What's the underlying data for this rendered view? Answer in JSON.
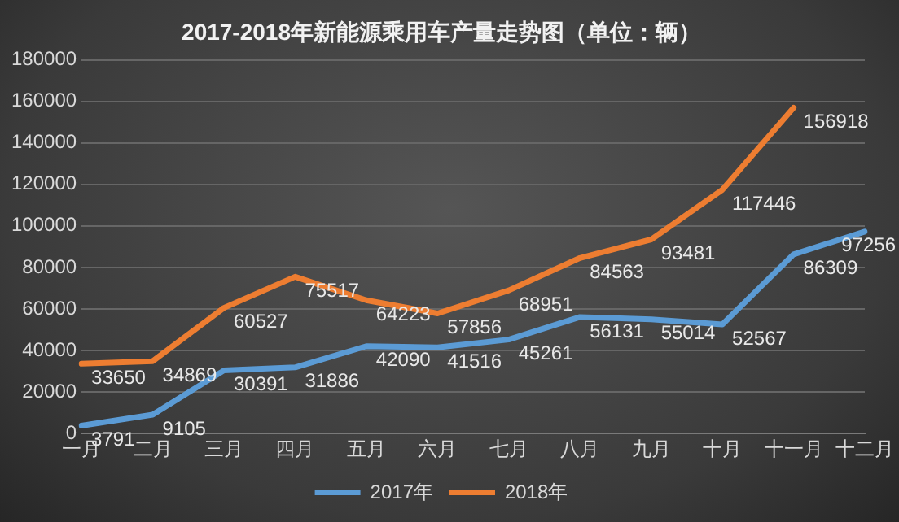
{
  "chart_data": {
    "type": "line",
    "title": "2017-2018年新能源乘用车产量走势图（单位：辆）",
    "categories": [
      "一月",
      "二月",
      "三月",
      "四月",
      "五月",
      "六月",
      "七月",
      "八月",
      "九月",
      "十月",
      "十一月",
      "十二月"
    ],
    "series": [
      {
        "name": "2017年",
        "color": "#5b9bd5",
        "values": [
          3791,
          9105,
          30391,
          31886,
          42090,
          41516,
          45261,
          56131,
          55014,
          52567,
          86309,
          97256
        ]
      },
      {
        "name": "2018年",
        "color": "#ed7d31",
        "values": [
          33650,
          34869,
          60527,
          75517,
          64223,
          57856,
          68951,
          84563,
          93481,
          117446,
          156918,
          null
        ]
      }
    ],
    "ylim": [
      0,
      180000
    ],
    "yticks": [
      0,
      20000,
      40000,
      60000,
      80000,
      100000,
      120000,
      140000,
      160000,
      180000
    ],
    "grid": "y",
    "legend": "bottom",
    "data_labels": true,
    "marker": "none",
    "line_style": "solid"
  }
}
